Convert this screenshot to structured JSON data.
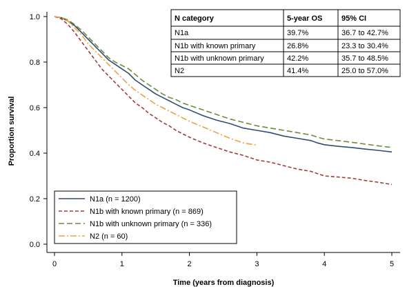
{
  "chart_data": {
    "type": "line",
    "xlabel": "Time (years from diagnosis)",
    "ylabel": "Proportion survival",
    "xlim": [
      0,
      5
    ],
    "ylim": [
      0,
      1
    ],
    "x_ticks": [
      "0",
      "1",
      "2",
      "3",
      "4",
      "5"
    ],
    "y_ticks": [
      "0.0",
      "0.2",
      "0.4",
      "0.6",
      "0.8",
      "1.0"
    ],
    "grid": false,
    "legend_placement": "bottom-left",
    "series": [
      {
        "name": "N1a (n = 1200)",
        "color": "#2e4d6e",
        "dash": "solid",
        "x": [
          0,
          0.1,
          0.2,
          0.3,
          0.4,
          0.5,
          0.6,
          0.7,
          0.8,
          0.9,
          1.0,
          1.1,
          1.2,
          1.3,
          1.4,
          1.5,
          1.6,
          1.7,
          1.8,
          1.9,
          2.0,
          2.2,
          2.4,
          2.6,
          2.8,
          3.0,
          3.2,
          3.4,
          3.6,
          3.8,
          3.9,
          4.0,
          4.2,
          4.4,
          4.6,
          4.8,
          5.0
        ],
        "y": [
          1.0,
          0.995,
          0.98,
          0.96,
          0.93,
          0.9,
          0.87,
          0.84,
          0.81,
          0.79,
          0.77,
          0.75,
          0.72,
          0.7,
          0.68,
          0.66,
          0.645,
          0.63,
          0.615,
          0.6,
          0.59,
          0.565,
          0.545,
          0.53,
          0.51,
          0.5,
          0.49,
          0.475,
          0.465,
          0.455,
          0.445,
          0.437,
          0.43,
          0.425,
          0.418,
          0.412,
          0.405
        ]
      },
      {
        "name": "N1b with known primary (n = 869)",
        "color": "#a33a3a",
        "dash": "dashed",
        "x": [
          0,
          0.1,
          0.2,
          0.3,
          0.4,
          0.5,
          0.6,
          0.7,
          0.8,
          0.9,
          1.0,
          1.1,
          1.2,
          1.3,
          1.4,
          1.5,
          1.6,
          1.7,
          1.8,
          1.9,
          2.0,
          2.2,
          2.4,
          2.6,
          2.8,
          3.0,
          3.2,
          3.4,
          3.6,
          3.8,
          3.9,
          4.0,
          4.2,
          4.4,
          4.6,
          4.8,
          5.0
        ],
        "y": [
          1.0,
          0.99,
          0.965,
          0.93,
          0.89,
          0.85,
          0.81,
          0.77,
          0.74,
          0.71,
          0.68,
          0.65,
          0.62,
          0.6,
          0.575,
          0.555,
          0.535,
          0.52,
          0.5,
          0.485,
          0.47,
          0.445,
          0.425,
          0.405,
          0.39,
          0.37,
          0.36,
          0.345,
          0.33,
          0.32,
          0.31,
          0.3,
          0.295,
          0.29,
          0.28,
          0.272,
          0.262
        ]
      },
      {
        "name": "N1b with unknown primary (n = 336)",
        "color": "#6f8a3a",
        "dash": "longdash",
        "x": [
          0,
          0.1,
          0.2,
          0.3,
          0.4,
          0.5,
          0.6,
          0.7,
          0.8,
          0.9,
          1.0,
          1.1,
          1.2,
          1.3,
          1.4,
          1.5,
          1.6,
          1.7,
          1.8,
          1.9,
          2.0,
          2.2,
          2.4,
          2.6,
          2.8,
          3.0,
          3.2,
          3.4,
          3.6,
          3.8,
          3.9,
          4.0,
          4.2,
          4.4,
          4.6,
          4.8,
          5.0
        ],
        "y": [
          1.0,
          0.995,
          0.985,
          0.965,
          0.94,
          0.91,
          0.88,
          0.85,
          0.82,
          0.8,
          0.785,
          0.77,
          0.745,
          0.72,
          0.7,
          0.68,
          0.66,
          0.645,
          0.635,
          0.62,
          0.61,
          0.59,
          0.57,
          0.55,
          0.535,
          0.52,
          0.51,
          0.5,
          0.49,
          0.48,
          0.47,
          0.462,
          0.455,
          0.448,
          0.44,
          0.432,
          0.425
        ]
      },
      {
        "name": "N2 (n = 60)",
        "color": "#f0a042",
        "dash": "dashdot",
        "x": [
          0,
          0.1,
          0.2,
          0.3,
          0.4,
          0.5,
          0.6,
          0.7,
          0.8,
          0.9,
          1.0,
          1.1,
          1.2,
          1.3,
          1.4,
          1.5,
          1.6,
          1.7,
          1.8,
          1.9,
          2.0,
          2.2,
          2.4,
          2.6,
          2.8,
          3.0
        ],
        "y": [
          1.0,
          0.995,
          0.98,
          0.95,
          0.92,
          0.88,
          0.85,
          0.82,
          0.79,
          0.76,
          0.73,
          0.7,
          0.675,
          0.655,
          0.635,
          0.615,
          0.6,
          0.585,
          0.57,
          0.555,
          0.54,
          0.515,
          0.49,
          0.465,
          0.445,
          0.435
        ]
      }
    ],
    "table": {
      "headers": [
        "N category",
        "5-year OS",
        "95% CI"
      ],
      "rows": [
        [
          "N1a",
          "39.7%",
          "36.7 to 42.7%"
        ],
        [
          "N1b with known primary",
          "26.8%",
          "23.3 to 30.4%"
        ],
        [
          "N1b with unknown primary",
          "42.2%",
          "35.7 to 48.5%"
        ],
        [
          "N2",
          "41.4%",
          "25.0 to 57.0%"
        ]
      ]
    }
  }
}
